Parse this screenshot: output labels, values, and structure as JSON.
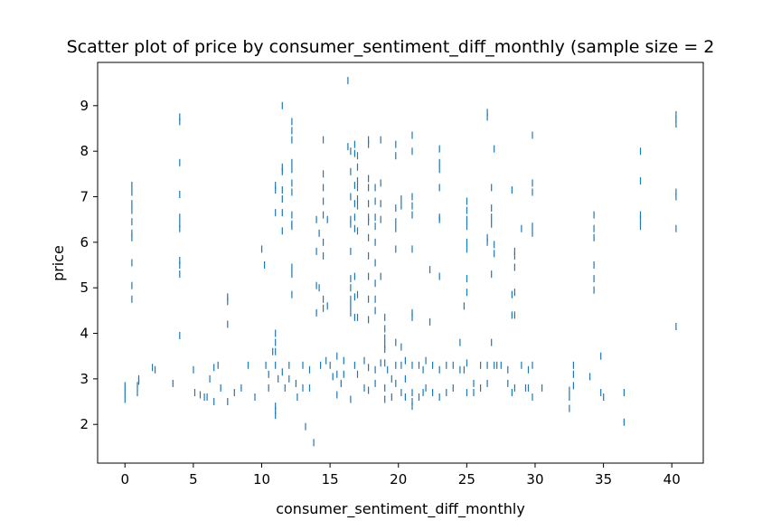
{
  "chart_data": {
    "type": "scatter",
    "title": "Scatter plot of price by consumer_sentiment_diff_monthly (sample size = 2",
    "xlabel": "consumer_sentiment_diff_monthly",
    "ylabel": "price",
    "xlim": [
      -2,
      42.3
    ],
    "ylim": [
      1.15,
      9.95
    ],
    "x_ticks": [
      0,
      5,
      10,
      15,
      20,
      25,
      30,
      35,
      40
    ],
    "y_ticks": [
      2,
      3,
      4,
      5,
      6,
      7,
      8,
      9
    ],
    "marker_color": "#1f77b4",
    "grid": false,
    "points": [
      [
        0,
        2.55
      ],
      [
        0,
        2.7
      ],
      [
        0,
        2.85
      ],
      [
        0.5,
        7.25
      ],
      [
        0.5,
        7.1
      ],
      [
        0.5,
        6.85
      ],
      [
        0.5,
        6.7
      ],
      [
        0.5,
        6.45
      ],
      [
        0.5,
        6.2
      ],
      [
        0.5,
        6.1
      ],
      [
        0.5,
        5.55
      ],
      [
        0.5,
        5.05
      ],
      [
        0.5,
        4.75
      ],
      [
        0.9,
        2.7
      ],
      [
        0.9,
        2.85
      ],
      [
        1,
        2.95
      ],
      [
        1,
        3.0
      ],
      [
        2,
        3.25
      ],
      [
        2.2,
        3.2
      ],
      [
        3.5,
        2.9
      ],
      [
        4,
        8.75
      ],
      [
        4,
        8.65
      ],
      [
        4,
        7.75
      ],
      [
        4,
        7.05
      ],
      [
        4,
        6.55
      ],
      [
        4,
        6.4
      ],
      [
        4,
        6.3
      ],
      [
        4,
        5.6
      ],
      [
        4,
        5.5
      ],
      [
        4,
        5.3
      ],
      [
        4,
        3.95
      ],
      [
        5,
        3.2
      ],
      [
        5.1,
        2.7
      ],
      [
        5.5,
        2.65
      ],
      [
        5.8,
        2.6
      ],
      [
        6,
        2.6
      ],
      [
        6.2,
        3.0
      ],
      [
        6.5,
        3.25
      ],
      [
        6.5,
        2.5
      ],
      [
        6.8,
        3.3
      ],
      [
        7,
        2.8
      ],
      [
        7.5,
        4.8
      ],
      [
        7.5,
        4.7
      ],
      [
        7.5,
        4.2
      ],
      [
        7.5,
        2.5
      ],
      [
        8,
        2.7
      ],
      [
        8.5,
        2.8
      ],
      [
        9,
        3.3
      ],
      [
        9.5,
        2.6
      ],
      [
        10,
        5.85
      ],
      [
        10.2,
        5.5
      ],
      [
        10.3,
        3.3
      ],
      [
        10.5,
        3.1
      ],
      [
        10.5,
        2.8
      ],
      [
        10.8,
        3.6
      ],
      [
        11,
        7.25
      ],
      [
        11,
        7.15
      ],
      [
        11,
        6.65
      ],
      [
        11,
        4.0
      ],
      [
        11,
        3.8
      ],
      [
        11,
        3.6
      ],
      [
        11,
        3.3
      ],
      [
        11,
        2.4
      ],
      [
        11,
        2.3
      ],
      [
        11,
        2.2
      ],
      [
        11.2,
        3.0
      ],
      [
        11.5,
        9.0
      ],
      [
        11.5,
        7.65
      ],
      [
        11.5,
        7.55
      ],
      [
        11.5,
        7.15
      ],
      [
        11.5,
        6.95
      ],
      [
        11.5,
        6.65
      ],
      [
        11.5,
        6.25
      ],
      [
        11.5,
        3.15
      ],
      [
        11.7,
        2.8
      ],
      [
        12,
        3.3
      ],
      [
        12,
        3.0
      ],
      [
        12.2,
        8.65
      ],
      [
        12.2,
        8.45
      ],
      [
        12.2,
        8.25
      ],
      [
        12.2,
        7.75
      ],
      [
        12.2,
        7.6
      ],
      [
        12.2,
        7.3
      ],
      [
        12.2,
        7.1
      ],
      [
        12.2,
        6.6
      ],
      [
        12.2,
        6.4
      ],
      [
        12.2,
        6.35
      ],
      [
        12.2,
        5.45
      ],
      [
        12.2,
        5.3
      ],
      [
        12.2,
        4.85
      ],
      [
        12.5,
        2.9
      ],
      [
        12.6,
        2.6
      ],
      [
        13,
        3.3
      ],
      [
        13,
        2.8
      ],
      [
        13.2,
        1.95
      ],
      [
        13.5,
        3.2
      ],
      [
        13.5,
        2.8
      ],
      [
        13.8,
        1.6
      ],
      [
        14,
        6.5
      ],
      [
        14,
        5.8
      ],
      [
        14,
        5.05
      ],
      [
        14,
        4.45
      ],
      [
        14.2,
        6.2
      ],
      [
        14.2,
        5.0
      ],
      [
        14.3,
        3.3
      ],
      [
        14.5,
        8.25
      ],
      [
        14.5,
        7.5
      ],
      [
        14.5,
        7.2
      ],
      [
        14.5,
        6.9
      ],
      [
        14.5,
        6.6
      ],
      [
        14.5,
        6.0
      ],
      [
        14.5,
        5.7
      ],
      [
        14.5,
        4.75
      ],
      [
        14.5,
        4.55
      ],
      [
        14.7,
        3.4
      ],
      [
        14.8,
        6.5
      ],
      [
        14.8,
        4.6
      ],
      [
        15,
        3.3
      ],
      [
        15.2,
        3.05
      ],
      [
        15.5,
        3.5
      ],
      [
        15.5,
        3.1
      ],
      [
        15.5,
        2.65
      ],
      [
        15.8,
        2.9
      ],
      [
        16,
        3.4
      ],
      [
        16,
        3.1
      ],
      [
        16.3,
        9.55
      ],
      [
        16.3,
        8.1
      ],
      [
        16.5,
        8.0
      ],
      [
        16.5,
        7.55
      ],
      [
        16.5,
        7.0
      ],
      [
        16.5,
        6.5
      ],
      [
        16.5,
        6.4
      ],
      [
        16.5,
        5.8
      ],
      [
        16.5,
        5.2
      ],
      [
        16.5,
        5.0
      ],
      [
        16.5,
        4.75
      ],
      [
        16.5,
        4.6
      ],
      [
        16.5,
        4.45
      ],
      [
        16.5,
        2.55
      ],
      [
        16.8,
        8.15
      ],
      [
        16.8,
        7.95
      ],
      [
        16.8,
        7.25
      ],
      [
        16.8,
        6.85
      ],
      [
        16.8,
        6.55
      ],
      [
        16.8,
        6.3
      ],
      [
        16.8,
        5.25
      ],
      [
        16.8,
        4.8
      ],
      [
        16.8,
        4.35
      ],
      [
        16.8,
        3.3
      ],
      [
        17,
        7.9
      ],
      [
        17,
        7.65
      ],
      [
        17,
        7.35
      ],
      [
        17,
        7.2
      ],
      [
        17,
        6.95
      ],
      [
        17,
        6.8
      ],
      [
        17,
        6.25
      ],
      [
        17,
        4.85
      ],
      [
        17,
        4.35
      ],
      [
        17,
        3.1
      ],
      [
        17.5,
        3.4
      ],
      [
        17.5,
        2.8
      ],
      [
        17.8,
        8.25
      ],
      [
        17.8,
        8.15
      ],
      [
        17.8,
        7.4
      ],
      [
        17.8,
        7.2
      ],
      [
        17.8,
        6.85
      ],
      [
        17.8,
        6.55
      ],
      [
        17.8,
        6.45
      ],
      [
        17.8,
        6.1
      ],
      [
        17.8,
        5.7
      ],
      [
        17.8,
        5.25
      ],
      [
        17.8,
        4.75
      ],
      [
        17.8,
        4.3
      ],
      [
        17.8,
        3.25
      ],
      [
        17.8,
        2.75
      ],
      [
        18.3,
        7.2
      ],
      [
        18.3,
        6.9
      ],
      [
        18.3,
        6.55
      ],
      [
        18.3,
        6.35
      ],
      [
        18.3,
        6.0
      ],
      [
        18.3,
        5.55
      ],
      [
        18.3,
        5.1
      ],
      [
        18.3,
        4.75
      ],
      [
        18.3,
        4.5
      ],
      [
        18.3,
        3.2
      ],
      [
        18.3,
        2.9
      ],
      [
        18.7,
        8.25
      ],
      [
        18.7,
        7.3
      ],
      [
        18.7,
        6.85
      ],
      [
        18.7,
        6.5
      ],
      [
        18.7,
        5.25
      ],
      [
        18.7,
        3.35
      ],
      [
        19,
        4.35
      ],
      [
        19,
        4.1
      ],
      [
        19,
        3.9
      ],
      [
        19,
        3.75
      ],
      [
        19,
        3.65
      ],
      [
        19,
        3.35
      ],
      [
        19,
        2.8
      ],
      [
        19,
        2.55
      ],
      [
        19.2,
        3.2
      ],
      [
        19.5,
        3.0
      ],
      [
        19.5,
        2.6
      ],
      [
        19.8,
        8.15
      ],
      [
        19.8,
        7.9
      ],
      [
        19.8,
        6.75
      ],
      [
        19.8,
        6.45
      ],
      [
        19.8,
        6.3
      ],
      [
        19.8,
        5.85
      ],
      [
        19.8,
        3.8
      ],
      [
        19.8,
        3.3
      ],
      [
        19.8,
        2.9
      ],
      [
        20.2,
        6.95
      ],
      [
        20.2,
        6.8
      ],
      [
        20.2,
        3.7
      ],
      [
        20.2,
        3.3
      ],
      [
        20.2,
        2.7
      ],
      [
        20.5,
        3.4
      ],
      [
        20.5,
        3.0
      ],
      [
        20.5,
        2.6
      ],
      [
        21,
        8.35
      ],
      [
        21,
        8.0
      ],
      [
        21,
        7.0
      ],
      [
        21,
        6.8
      ],
      [
        21,
        6.6
      ],
      [
        21,
        5.85
      ],
      [
        21,
        4.45
      ],
      [
        21,
        4.35
      ],
      [
        21,
        3.3
      ],
      [
        21,
        2.7
      ],
      [
        21,
        2.5
      ],
      [
        21,
        2.4
      ],
      [
        21.5,
        3.3
      ],
      [
        21.5,
        2.6
      ],
      [
        21.8,
        3.2
      ],
      [
        21.8,
        2.7
      ],
      [
        22,
        3.4
      ],
      [
        22,
        2.8
      ],
      [
        22.3,
        5.4
      ],
      [
        22.3,
        4.25
      ],
      [
        22.5,
        3.3
      ],
      [
        22.5,
        2.7
      ],
      [
        23,
        8.05
      ],
      [
        23,
        7.75
      ],
      [
        23,
        7.6
      ],
      [
        23,
        7.2
      ],
      [
        23,
        6.55
      ],
      [
        23,
        6.5
      ],
      [
        23,
        5.25
      ],
      [
        23,
        3.2
      ],
      [
        23,
        2.6
      ],
      [
        23.5,
        3.3
      ],
      [
        23.5,
        2.7
      ],
      [
        24,
        3.3
      ],
      [
        24,
        2.8
      ],
      [
        24.5,
        3.8
      ],
      [
        24.5,
        3.2
      ],
      [
        24.8,
        4.6
      ],
      [
        24.8,
        3.2
      ],
      [
        25,
        6.9
      ],
      [
        25,
        6.7
      ],
      [
        25,
        6.5
      ],
      [
        25,
        6.35
      ],
      [
        25,
        6.0
      ],
      [
        25,
        5.85
      ],
      [
        25,
        5.2
      ],
      [
        25,
        4.9
      ],
      [
        25,
        3.35
      ],
      [
        25,
        2.7
      ],
      [
        25.5,
        2.9
      ],
      [
        25.5,
        2.7
      ],
      [
        26,
        3.3
      ],
      [
        26,
        2.8
      ],
      [
        26.5,
        8.85
      ],
      [
        26.5,
        8.75
      ],
      [
        26.5,
        6.1
      ],
      [
        26.5,
        6.0
      ],
      [
        26.5,
        3.3
      ],
      [
        26.5,
        2.9
      ],
      [
        26.8,
        7.2
      ],
      [
        26.8,
        6.75
      ],
      [
        26.8,
        6.55
      ],
      [
        26.8,
        6.4
      ],
      [
        26.8,
        5.3
      ],
      [
        26.8,
        3.8
      ],
      [
        27,
        8.05
      ],
      [
        27,
        5.95
      ],
      [
        27,
        5.75
      ],
      [
        27,
        3.3
      ],
      [
        27.2,
        3.3
      ],
      [
        27.5,
        3.3
      ],
      [
        28,
        3.2
      ],
      [
        28,
        2.9
      ],
      [
        28.3,
        7.15
      ],
      [
        28.3,
        4.85
      ],
      [
        28.3,
        4.4
      ],
      [
        28.3,
        2.7
      ],
      [
        28.5,
        5.8
      ],
      [
        28.5,
        5.7
      ],
      [
        28.5,
        5.45
      ],
      [
        28.5,
        4.9
      ],
      [
        28.5,
        4.4
      ],
      [
        28.5,
        2.8
      ],
      [
        29,
        6.3
      ],
      [
        29,
        3.3
      ],
      [
        29.3,
        2.8
      ],
      [
        29.5,
        3.2
      ],
      [
        29.5,
        2.8
      ],
      [
        29.8,
        8.35
      ],
      [
        29.8,
        7.3
      ],
      [
        29.8,
        7.1
      ],
      [
        29.8,
        6.35
      ],
      [
        29.8,
        6.2
      ],
      [
        29.8,
        3.3
      ],
      [
        29.8,
        2.6
      ],
      [
        30.5,
        2.8
      ],
      [
        32.5,
        2.35
      ],
      [
        32.5,
        2.6
      ],
      [
        32.5,
        2.75
      ],
      [
        32.8,
        3.3
      ],
      [
        32.8,
        3.1
      ],
      [
        32.8,
        2.85
      ],
      [
        34,
        3.05
      ],
      [
        34.3,
        6.6
      ],
      [
        34.3,
        6.3
      ],
      [
        34.3,
        6.1
      ],
      [
        34.3,
        5.5
      ],
      [
        34.3,
        5.2
      ],
      [
        34.3,
        4.95
      ],
      [
        34.8,
        3.5
      ],
      [
        34.8,
        2.7
      ],
      [
        35,
        2.6
      ],
      [
        36.5,
        2.7
      ],
      [
        36.5,
        2.05
      ],
      [
        37.7,
        8.0
      ],
      [
        37.7,
        7.35
      ],
      [
        37.7,
        6.6
      ],
      [
        37.7,
        6.5
      ],
      [
        37.7,
        6.35
      ],
      [
        40.3,
        8.8
      ],
      [
        40.3,
        8.7
      ],
      [
        40.3,
        8.6
      ],
      [
        40.3,
        7.1
      ],
      [
        40.3,
        7.0
      ],
      [
        40.3,
        6.3
      ],
      [
        40.3,
        4.15
      ]
    ]
  }
}
